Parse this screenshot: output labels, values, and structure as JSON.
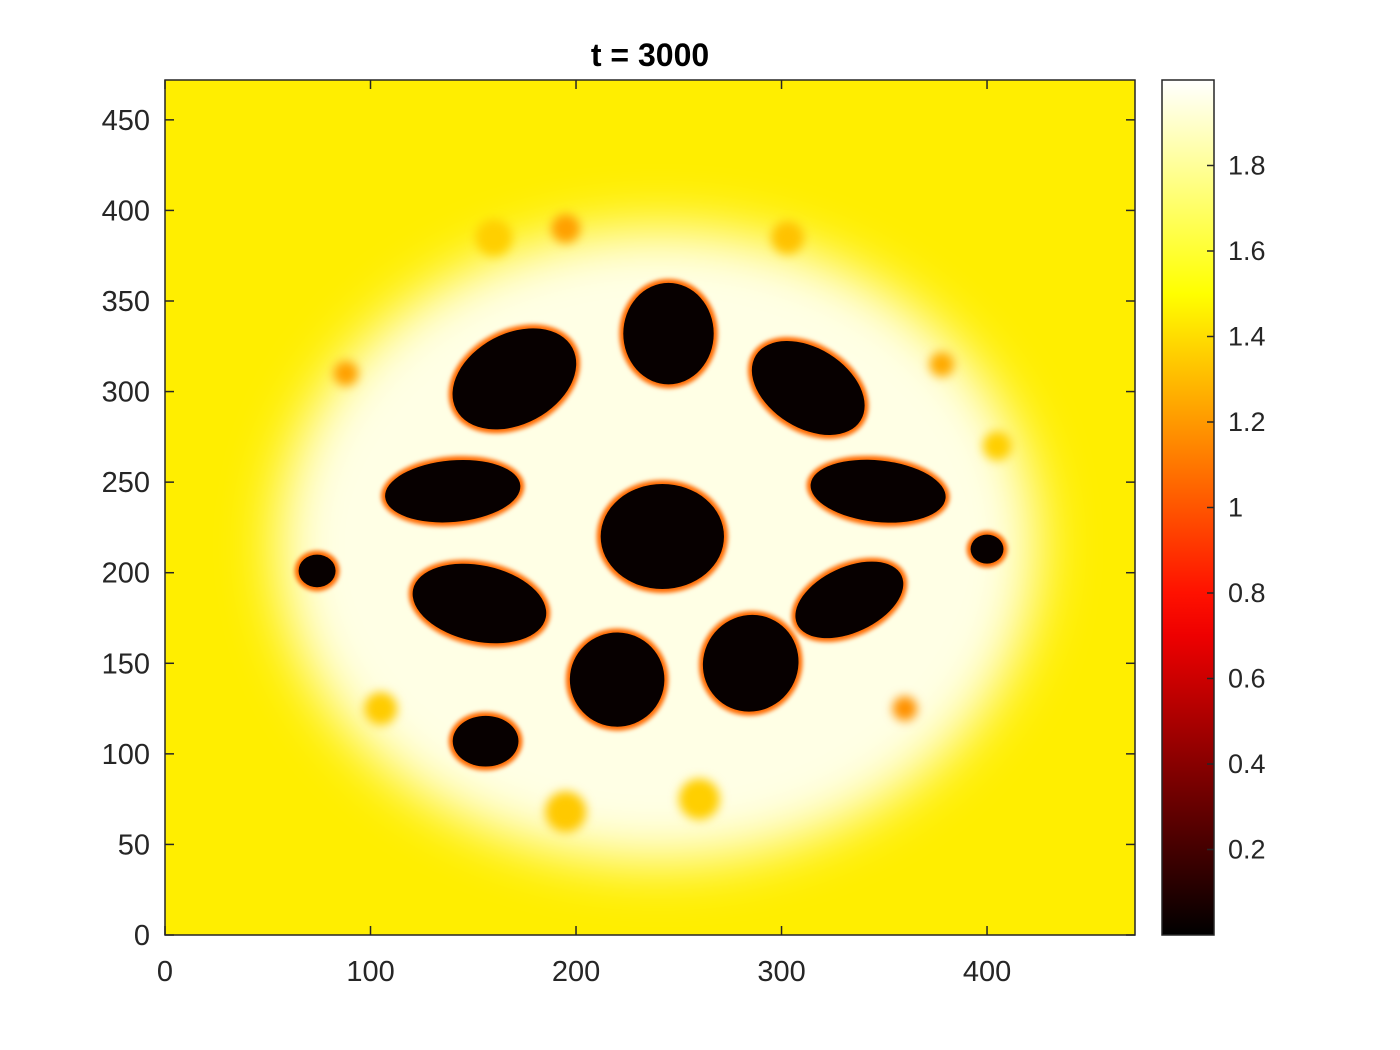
{
  "chart_data": {
    "type": "heatmap",
    "title": "t = 3000",
    "xlabel": "",
    "ylabel": "",
    "xlim": [
      0,
      472
    ],
    "ylim": [
      0,
      472
    ],
    "xticks": [
      0,
      100,
      200,
      300,
      400
    ],
    "yticks": [
      0,
      50,
      100,
      150,
      200,
      250,
      300,
      350,
      400,
      450
    ],
    "colormap": "hot",
    "background_value": 1.45,
    "colorbar": {
      "clim": [
        0.0,
        2.0
      ],
      "ticks": [
        0.2,
        0.4,
        0.6,
        0.8,
        1,
        1.2,
        1.4,
        1.6,
        1.8
      ],
      "tick_labels": [
        "0.2",
        "0.4",
        "0.6",
        "0.8",
        "1",
        "1.2",
        "1.4",
        "1.6",
        "1.8"
      ]
    },
    "bright_region": {
      "cx": 240,
      "cy": 215,
      "rx": 185,
      "ry": 175,
      "value": 1.95
    },
    "spots": [
      {
        "x": 242,
        "y": 220,
        "rx": 30,
        "ry": 29,
        "rot": 0,
        "value": 0.0
      },
      {
        "x": 245,
        "y": 332,
        "rx": 22,
        "ry": 28,
        "rot": 0,
        "value": 0.0
      },
      {
        "x": 170,
        "y": 307,
        "rx": 32,
        "ry": 25,
        "rot": -28,
        "value": 0.0
      },
      {
        "x": 313,
        "y": 302,
        "rx": 30,
        "ry": 22,
        "rot": 32,
        "value": 0.0
      },
      {
        "x": 140,
        "y": 245,
        "rx": 33,
        "ry": 17,
        "rot": -5,
        "value": 0.0
      },
      {
        "x": 347,
        "y": 245,
        "rx": 33,
        "ry": 17,
        "rot": 6,
        "value": 0.0
      },
      {
        "x": 153,
        "y": 183,
        "rx": 33,
        "ry": 21,
        "rot": 12,
        "value": 0.0
      },
      {
        "x": 333,
        "y": 185,
        "rx": 28,
        "ry": 18,
        "rot": -25,
        "value": 0.0
      },
      {
        "x": 220,
        "y": 141,
        "rx": 23,
        "ry": 26,
        "rot": -10,
        "value": 0.0
      },
      {
        "x": 285,
        "y": 150,
        "rx": 23,
        "ry": 27,
        "rot": 35,
        "value": 0.0
      },
      {
        "x": 156,
        "y": 107,
        "rx": 16,
        "ry": 14,
        "rot": 0,
        "value": 0.0
      },
      {
        "x": 74,
        "y": 201,
        "rx": 9,
        "ry": 9,
        "rot": 0,
        "value": 0.0
      },
      {
        "x": 400,
        "y": 213,
        "rx": 8,
        "ry": 8,
        "rot": 0,
        "value": 0.0
      }
    ],
    "faint_spots": [
      {
        "x": 195,
        "y": 390,
        "r": 7,
        "value": 1.22
      },
      {
        "x": 88,
        "y": 310,
        "r": 6,
        "value": 1.22
      },
      {
        "x": 378,
        "y": 315,
        "r": 6,
        "value": 1.25
      },
      {
        "x": 360,
        "y": 125,
        "r": 6,
        "value": 1.18
      },
      {
        "x": 303,
        "y": 385,
        "r": 8,
        "value": 1.32
      },
      {
        "x": 160,
        "y": 385,
        "r": 9,
        "value": 1.36
      },
      {
        "x": 195,
        "y": 68,
        "r": 10,
        "value": 1.34
      },
      {
        "x": 260,
        "y": 75,
        "r": 10,
        "value": 1.36
      },
      {
        "x": 105,
        "y": 125,
        "r": 8,
        "value": 1.35
      },
      {
        "x": 405,
        "y": 270,
        "r": 7,
        "value": 1.36
      }
    ]
  }
}
